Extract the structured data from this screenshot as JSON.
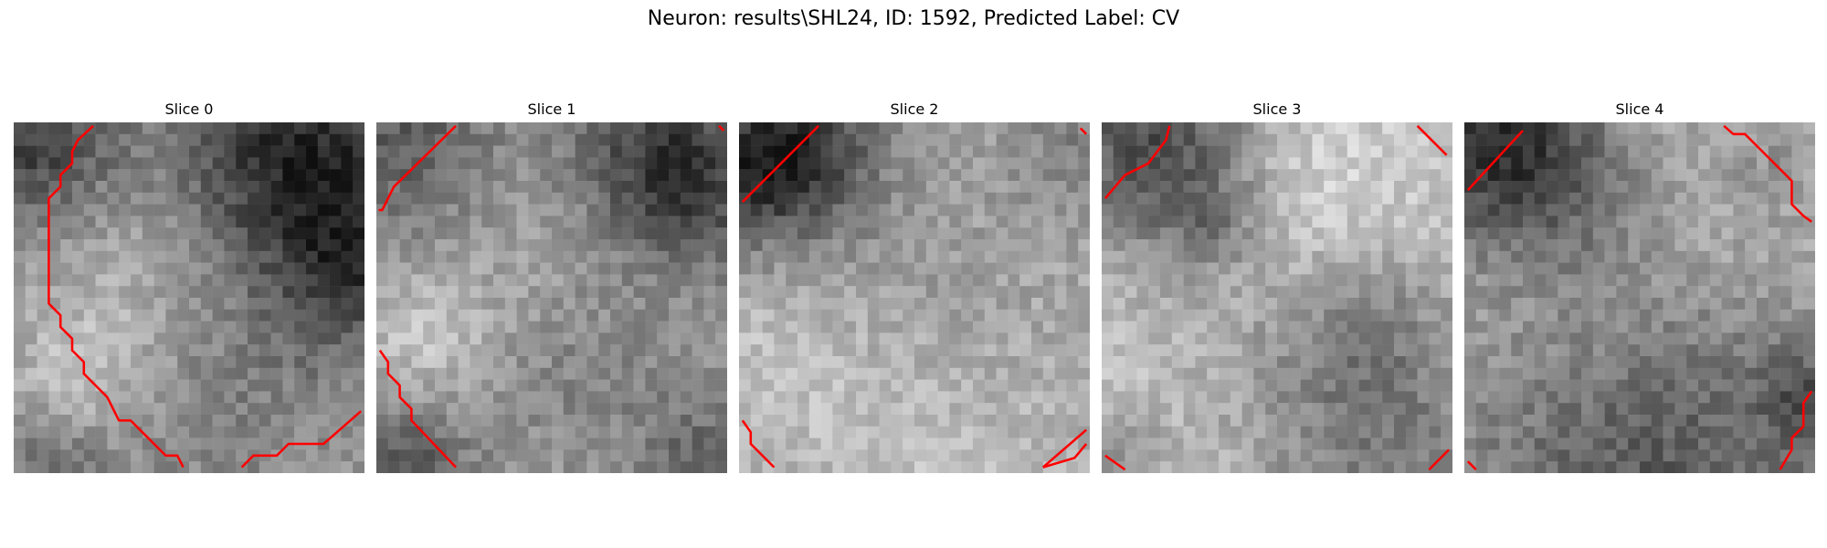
{
  "figure": {
    "title": "Neuron: results\\SHL24, ID: 1592, Predicted Label: CV"
  },
  "panels": [
    {
      "title": "Slice 0"
    },
    {
      "title": "Slice 1"
    },
    {
      "title": "Slice 2"
    },
    {
      "title": "Slice 3"
    },
    {
      "title": "Slice 4"
    }
  ],
  "colors": {
    "contour": "#ff0000",
    "background": "#ffffff"
  }
}
